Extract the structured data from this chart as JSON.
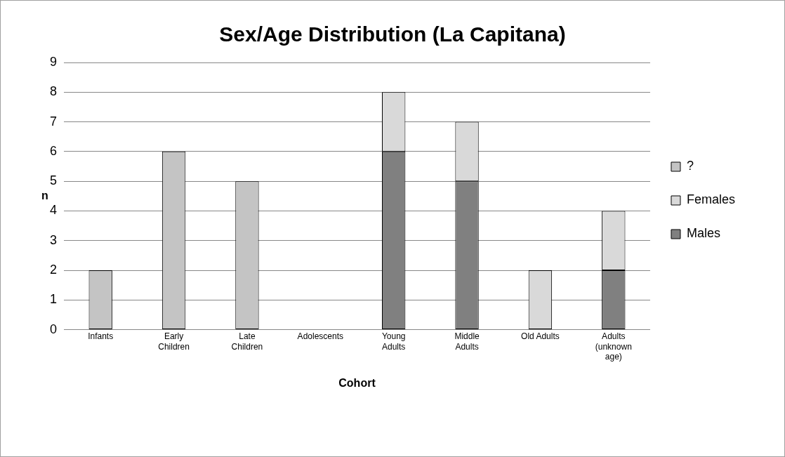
{
  "chart_data": {
    "type": "bar",
    "title": "Sex/Age Distribution (La Capitana)",
    "xlabel": "Cohort",
    "ylabel": "n",
    "categories": [
      "Infants",
      "Early Children",
      "Late Children",
      "Adolescents",
      "Young Adults",
      "Middle Adults",
      "Old Adults",
      "Adults (unknown age)"
    ],
    "stacked": true,
    "series": [
      {
        "name": "Males",
        "color": "#808080",
        "values": [
          null,
          null,
          null,
          null,
          6,
          5,
          null,
          2
        ]
      },
      {
        "name": "Females",
        "color": "#d9d9d9",
        "values": [
          null,
          null,
          null,
          null,
          2,
          2,
          2,
          2
        ]
      },
      {
        "name": "?",
        "color": "#c4c4c4",
        "values": [
          2,
          6,
          5,
          null,
          null,
          null,
          null,
          null
        ]
      }
    ],
    "ylim": [
      0,
      9
    ],
    "yticks": [
      0,
      1,
      2,
      3,
      4,
      5,
      6,
      7,
      8,
      9
    ],
    "grid": "y",
    "legend": "right"
  }
}
